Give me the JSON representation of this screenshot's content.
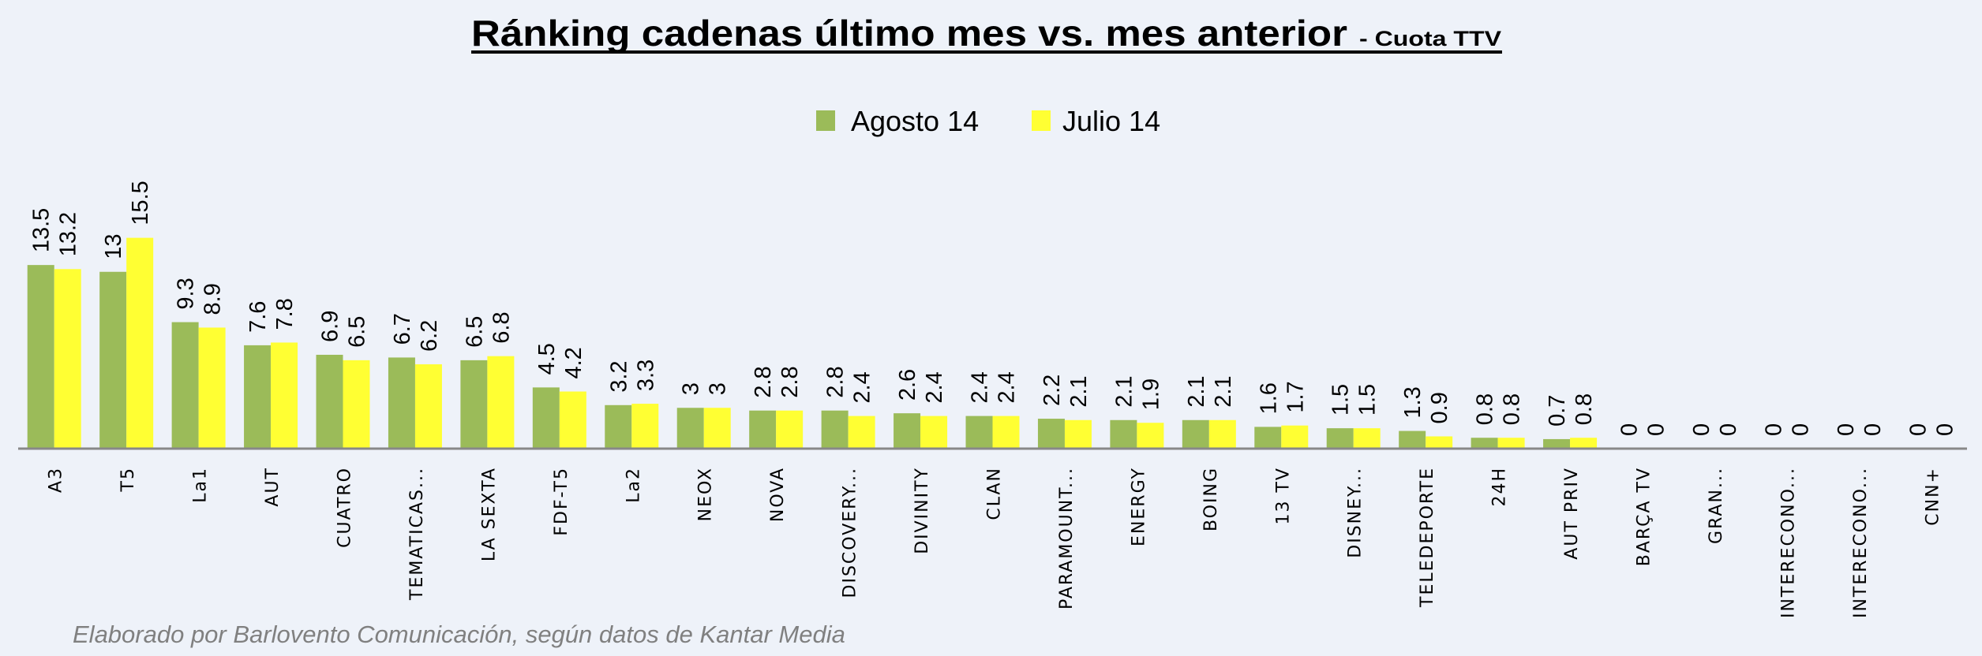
{
  "chart_data": {
    "type": "bar",
    "title": "Ránking cadenas último mes vs. mes anterior",
    "subtitle": "- Cuota TTV",
    "categories": [
      "A3",
      "T5",
      "La1",
      "AUT",
      "CUATRO",
      "TEMATICAS...",
      "LA SEXTA",
      "FDF-T5",
      "La2",
      "NEOX",
      "NOVA",
      "DISCOVERY...",
      "DIVINITY",
      "CLAN",
      "PARAMOUNT...",
      "ENERGY",
      "BOING",
      "13 TV",
      "DISNEY...",
      "TELEDEPORTE",
      "24H",
      "AUT PRIV",
      "BARÇA TV",
      "GRAN...",
      "INTERECONO...",
      "INTERECONO...",
      "CNN+"
    ],
    "series": [
      {
        "name": "Agosto 14",
        "color": "#9BBB59",
        "values": [
          13.5,
          13,
          9.3,
          7.6,
          6.9,
          6.7,
          6.5,
          4.5,
          3.2,
          3,
          2.8,
          2.8,
          2.6,
          2.4,
          2.2,
          2.1,
          2.1,
          1.6,
          1.5,
          1.3,
          0.8,
          0.7,
          0,
          0,
          0,
          0,
          0
        ]
      },
      {
        "name": "Julio 14",
        "color": "#FFFF33",
        "values": [
          13.2,
          15.5,
          8.9,
          7.8,
          6.5,
          6.2,
          6.8,
          4.2,
          3.3,
          3,
          2.8,
          2.4,
          2.4,
          2.4,
          2.1,
          1.9,
          2.1,
          1.7,
          1.5,
          0.9,
          0.8,
          0.8,
          0,
          0,
          0,
          0,
          0
        ]
      }
    ],
    "xlabel": "",
    "ylabel": "",
    "ylim": [
      0,
      16
    ],
    "grid": false,
    "legend": "top-center",
    "data_labels": true
  },
  "footer": "Elaborado por Barlovento Comunicación, según datos de Kantar Media",
  "colors": {
    "background": "#EEF2F9",
    "axis": "#888888"
  }
}
